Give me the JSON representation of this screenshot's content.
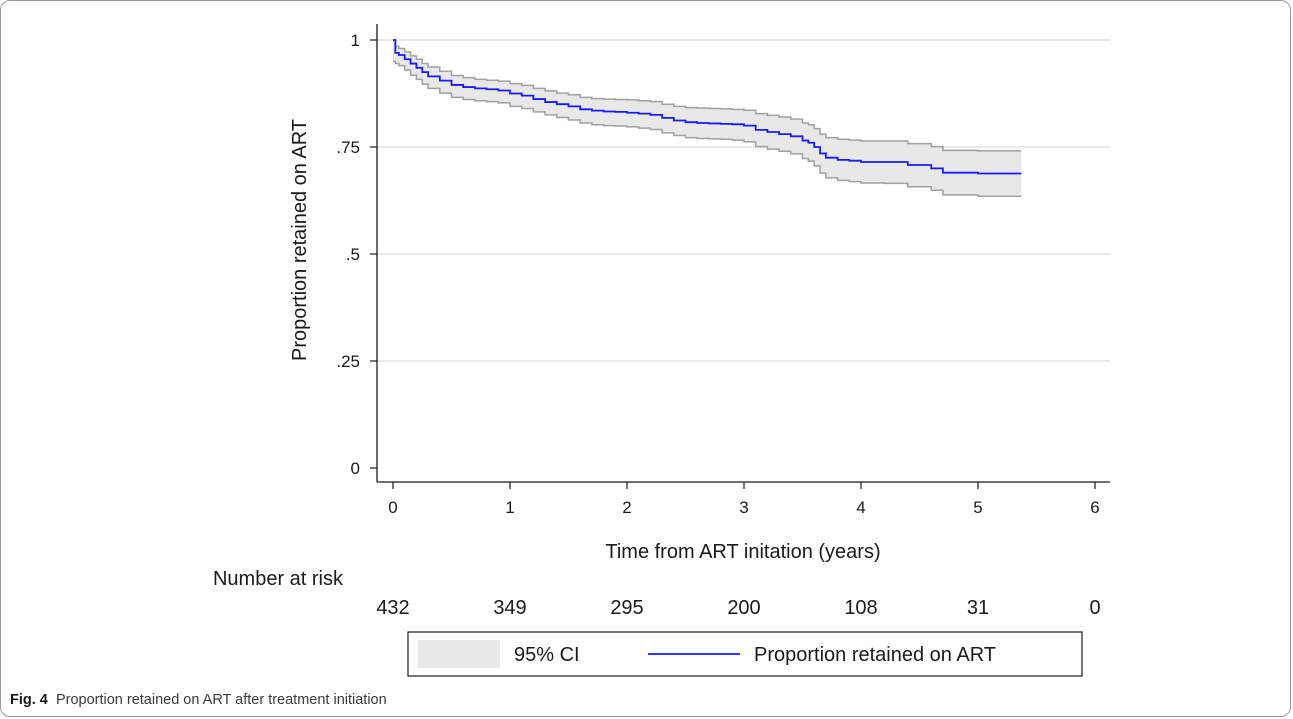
{
  "caption": {
    "label": "Fig. 4",
    "text": "Proportion retained on ART after treatment initiation"
  },
  "chart_data": {
    "type": "line",
    "title": "",
    "xlabel": "Time from ART initation (years)",
    "ylabel": "Proportion retained on ART",
    "xlim": [
      0,
      6
    ],
    "ylim": [
      0,
      1
    ],
    "x_ticks": [
      0,
      1,
      2,
      3,
      4,
      5,
      6
    ],
    "x_tick_labels": [
      "0",
      "1",
      "2",
      "3",
      "4",
      "5",
      "6"
    ],
    "y_ticks": [
      0,
      0.25,
      0.5,
      0.75,
      1
    ],
    "y_tick_labels": [
      "0",
      ".25",
      ".5",
      ".75",
      "1"
    ],
    "grid": true,
    "series": [
      {
        "name": "Proportion retained on ART",
        "color": "#1a1aff",
        "x": [
          0,
          0.02,
          0.05,
          0.1,
          0.15,
          0.2,
          0.25,
          0.3,
          0.4,
          0.5,
          0.6,
          0.7,
          0.8,
          0.9,
          1.0,
          1.1,
          1.2,
          1.3,
          1.4,
          1.5,
          1.6,
          1.7,
          1.8,
          1.9,
          2.0,
          2.1,
          2.2,
          2.3,
          2.4,
          2.5,
          2.6,
          2.7,
          2.8,
          2.9,
          3.0,
          3.1,
          3.2,
          3.3,
          3.4,
          3.5,
          3.55,
          3.6,
          3.65,
          3.7,
          3.8,
          3.9,
          4.0,
          4.2,
          4.4,
          4.6,
          4.7,
          5.0,
          5.37
        ],
        "y": [
          1.0,
          0.97,
          0.965,
          0.955,
          0.945,
          0.935,
          0.925,
          0.915,
          0.905,
          0.895,
          0.89,
          0.887,
          0.885,
          0.882,
          0.875,
          0.87,
          0.862,
          0.855,
          0.85,
          0.845,
          0.838,
          0.835,
          0.833,
          0.832,
          0.83,
          0.828,
          0.825,
          0.818,
          0.812,
          0.808,
          0.806,
          0.805,
          0.804,
          0.803,
          0.8,
          0.79,
          0.785,
          0.78,
          0.775,
          0.765,
          0.76,
          0.75,
          0.735,
          0.725,
          0.72,
          0.718,
          0.715,
          0.715,
          0.708,
          0.7,
          0.69,
          0.688,
          0.688
        ]
      }
    ],
    "ci": {
      "name": "95% CI",
      "fill": "#e8e8e8",
      "stroke": "#a0a0a0",
      "x": [
        0,
        0.02,
        0.05,
        0.1,
        0.15,
        0.2,
        0.25,
        0.3,
        0.4,
        0.5,
        0.6,
        0.7,
        0.8,
        0.9,
        1.0,
        1.1,
        1.2,
        1.3,
        1.4,
        1.5,
        1.6,
        1.7,
        1.8,
        1.9,
        2.0,
        2.1,
        2.2,
        2.3,
        2.4,
        2.5,
        2.6,
        2.7,
        2.8,
        2.9,
        3.0,
        3.1,
        3.2,
        3.3,
        3.4,
        3.5,
        3.55,
        3.6,
        3.65,
        3.7,
        3.8,
        3.9,
        4.0,
        4.2,
        4.4,
        4.6,
        4.7,
        5.0,
        5.37
      ],
      "upper": [
        1.0,
        0.985,
        0.98,
        0.972,
        0.963,
        0.955,
        0.945,
        0.937,
        0.927,
        0.917,
        0.912,
        0.908,
        0.906,
        0.904,
        0.898,
        0.894,
        0.887,
        0.881,
        0.876,
        0.872,
        0.866,
        0.863,
        0.862,
        0.861,
        0.86,
        0.858,
        0.856,
        0.85,
        0.845,
        0.842,
        0.841,
        0.84,
        0.839,
        0.838,
        0.836,
        0.828,
        0.824,
        0.82,
        0.815,
        0.806,
        0.802,
        0.793,
        0.78,
        0.772,
        0.768,
        0.766,
        0.764,
        0.764,
        0.758,
        0.751,
        0.742,
        0.741,
        0.741
      ],
      "lower": [
        0.95,
        0.945,
        0.94,
        0.93,
        0.918,
        0.908,
        0.897,
        0.887,
        0.876,
        0.866,
        0.861,
        0.858,
        0.856,
        0.853,
        0.845,
        0.84,
        0.832,
        0.825,
        0.819,
        0.813,
        0.806,
        0.802,
        0.8,
        0.799,
        0.797,
        0.794,
        0.791,
        0.783,
        0.777,
        0.772,
        0.77,
        0.769,
        0.768,
        0.766,
        0.762,
        0.751,
        0.745,
        0.74,
        0.734,
        0.723,
        0.717,
        0.706,
        0.689,
        0.678,
        0.672,
        0.669,
        0.666,
        0.665,
        0.657,
        0.649,
        0.638,
        0.635,
        0.635
      ]
    },
    "risk_table": {
      "title": "Number at risk",
      "times": [
        0,
        1,
        2,
        3,
        4,
        5,
        6
      ],
      "values": [
        "432",
        "349",
        "295",
        "200",
        "108",
        "31",
        "0"
      ]
    },
    "legend": {
      "position": "bottom",
      "items": [
        {
          "label": "95% CI",
          "kind": "area"
        },
        {
          "label": "Proportion retained on ART",
          "kind": "line"
        }
      ]
    }
  }
}
